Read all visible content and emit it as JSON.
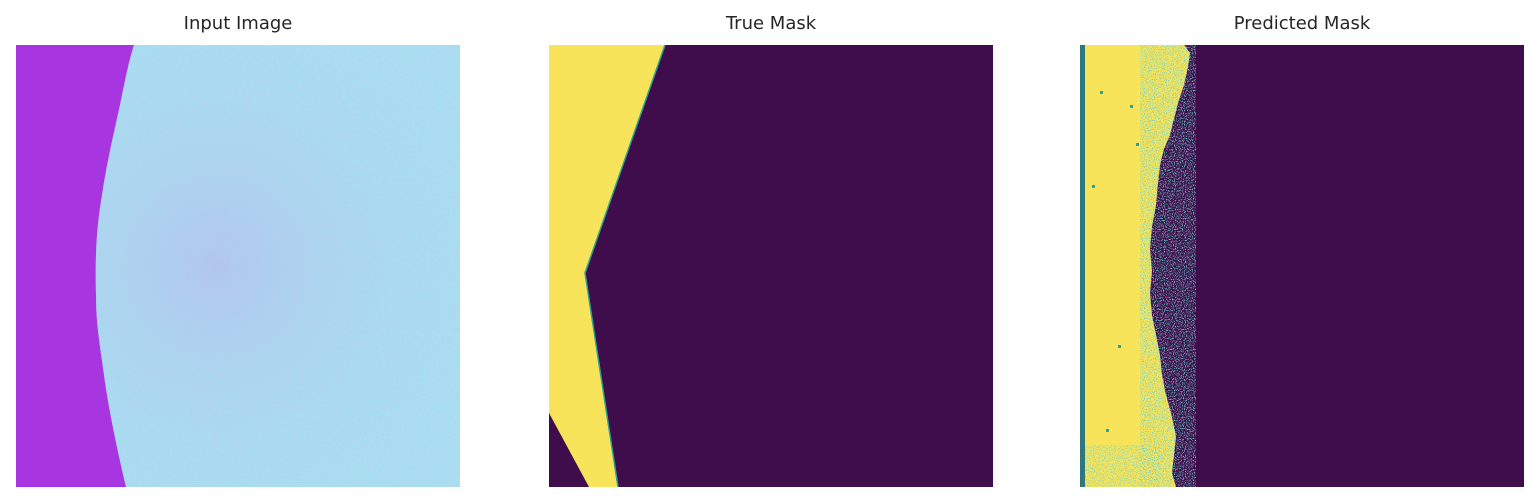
{
  "figure": {
    "panels": [
      {
        "id": "input",
        "title": "Input Image"
      },
      {
        "id": "true",
        "title": "True Mask"
      },
      {
        "id": "pred",
        "title": "Predicted Mask"
      }
    ]
  },
  "colors": {
    "mask_foreground": "#f8e45a",
    "mask_background": "#3f0d4c",
    "mask_edge": "#2aa493",
    "input_background": "#a735e0",
    "input_tissue": "#a7dff0",
    "input_tissue_shadow": "#b3a7e8"
  }
}
